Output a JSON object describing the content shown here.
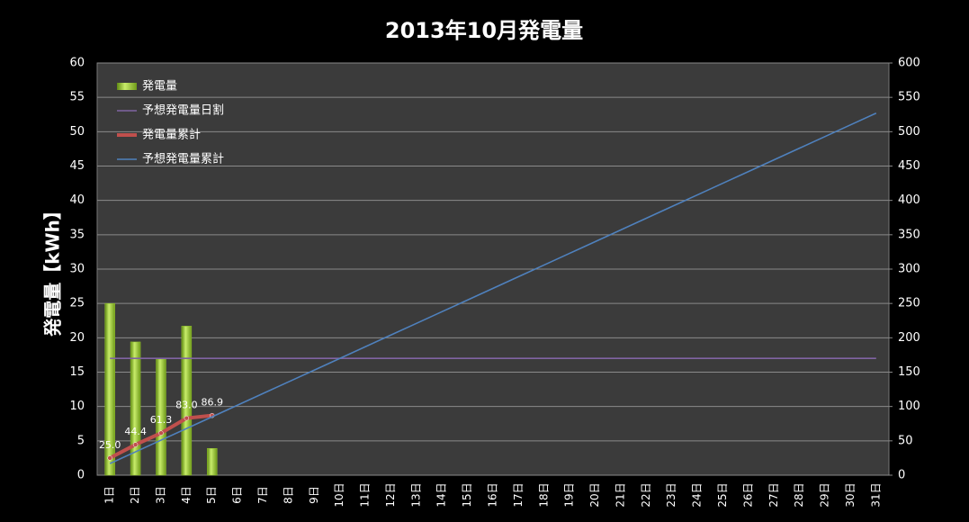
{
  "chart_data": {
    "type": "combo",
    "title": "2013年10月発電量",
    "y_label": "発電量【kWh】",
    "categories": [
      "1日",
      "2日",
      "3日",
      "4日",
      "5日",
      "6日",
      "7日",
      "8日",
      "9日",
      "10日",
      "11日",
      "12日",
      "13日",
      "14日",
      "15日",
      "16日",
      "17日",
      "18日",
      "19日",
      "20日",
      "21日",
      "22日",
      "23日",
      "24日",
      "25日",
      "26日",
      "27日",
      "28日",
      "29日",
      "30日",
      "31日"
    ],
    "series": [
      {
        "name": "発電量",
        "type": "bar",
        "color": "#8fbf2a",
        "values": [
          25.0,
          19.4,
          16.9,
          21.7,
          3.9,
          null,
          null,
          null,
          null,
          null,
          null,
          null,
          null,
          null,
          null,
          null,
          null,
          null,
          null,
          null,
          null,
          null,
          null,
          null,
          null,
          null,
          null,
          null,
          null,
          null,
          null
        ]
      },
      {
        "name": "予想発電量日割",
        "type": "line",
        "color": "#8064a2",
        "values": [
          17,
          17,
          17,
          17,
          17,
          17,
          17,
          17,
          17,
          17,
          17,
          17,
          17,
          17,
          17,
          17,
          17,
          17,
          17,
          17,
          17,
          17,
          17,
          17,
          17,
          17,
          17,
          17,
          17,
          17,
          17
        ]
      },
      {
        "name": "発電量累計",
        "type": "line",
        "axis": "y2",
        "color": "#c0504d",
        "markers": true,
        "values": [
          25.0,
          44.4,
          61.3,
          83.0,
          86.9,
          null,
          null,
          null,
          null,
          null,
          null,
          null,
          null,
          null,
          null,
          null,
          null,
          null,
          null,
          null,
          null,
          null,
          null,
          null,
          null,
          null,
          null,
          null,
          null,
          null,
          null
        ],
        "value_labels": [
          "25.0",
          "44.4",
          "61.3",
          "83.0",
          "86.9",
          null,
          null,
          null,
          null,
          null,
          null,
          null,
          null,
          null,
          null,
          null,
          null,
          null,
          null,
          null,
          null,
          null,
          null,
          null,
          null,
          null,
          null,
          null,
          null,
          null,
          null
        ]
      },
      {
        "name": "予想発電量累計",
        "type": "line",
        "axis": "y2",
        "color": "#4f81bd",
        "values": [
          17,
          34,
          51,
          68,
          85,
          102,
          119,
          136,
          153,
          170,
          187,
          204,
          221,
          238,
          255,
          272,
          289,
          306,
          323,
          340,
          357,
          374,
          391,
          408,
          425,
          442,
          459,
          476,
          493,
          510,
          527
        ]
      }
    ],
    "ylim": [
      0,
      60
    ],
    "yticks": [
      0,
      5,
      10,
      15,
      20,
      25,
      30,
      35,
      40,
      45,
      50,
      55,
      60
    ],
    "y2lim": [
      0,
      600
    ],
    "y2ticks": [
      0,
      50,
      100,
      150,
      200,
      250,
      300,
      350,
      400,
      450,
      500,
      550,
      600
    ],
    "grid": true,
    "legend": "top-left"
  }
}
